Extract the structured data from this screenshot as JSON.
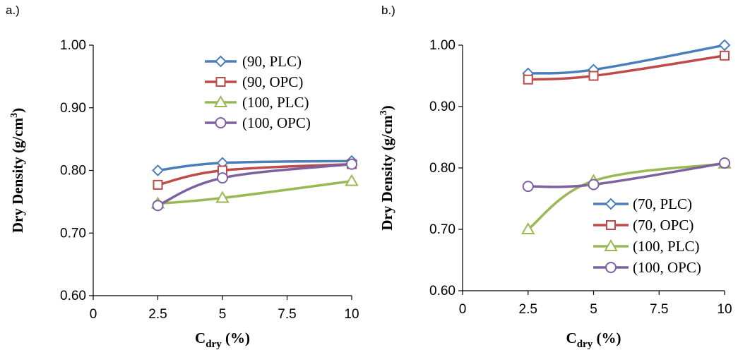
{
  "chart_data": [
    {
      "type": "line",
      "panel_label": "a.)",
      "xlabel": {
        "main": "C",
        "sub": "dry",
        "suffix": " (%)"
      },
      "ylabel": {
        "main": "Dry Density (g/cm",
        "sup": "3",
        "suffix": ")"
      },
      "xlim": [
        0,
        10
      ],
      "ylim": [
        0.6,
        1.0
      ],
      "x_ticks": [
        "0",
        "2.5",
        "5",
        "7.5",
        "10"
      ],
      "y_ticks": [
        "0.60",
        "0.70",
        "0.80",
        "0.90",
        "1.00"
      ],
      "grid": false,
      "legend_position": "top-right",
      "x": [
        2.5,
        5,
        10
      ],
      "series": [
        {
          "name": "(90,  PLC)",
          "color": "#4a7ebb",
          "marker": "diamond",
          "values": [
            0.8,
            0.812,
            0.815
          ]
        },
        {
          "name": "(90,  OPC)",
          "color": "#be4b48",
          "marker": "square",
          "values": [
            0.777,
            0.8,
            0.81
          ]
        },
        {
          "name": "(100,  PLC)",
          "color": "#98b954",
          "marker": "triangle",
          "values": [
            0.747,
            0.756,
            0.783
          ]
        },
        {
          "name": "(100,  OPC)",
          "color": "#7d60a0",
          "marker": "circle",
          "values": [
            0.744,
            0.788,
            0.81
          ]
        }
      ]
    },
    {
      "type": "line",
      "panel_label": "b.)",
      "xlabel": {
        "main": "C",
        "sub": "dry",
        "suffix": " (%)"
      },
      "ylabel": {
        "main": "Dry Density (g/cm",
        "sup": "3",
        "suffix": ")"
      },
      "xlim": [
        0,
        10
      ],
      "ylim": [
        0.6,
        1.0
      ],
      "x_ticks": [
        "0",
        "2.5",
        "5",
        "7.5",
        "10"
      ],
      "y_ticks": [
        "0.60",
        "0.70",
        "0.80",
        "0.90",
        "1.00"
      ],
      "grid": false,
      "legend_position": "bottom-right",
      "x": [
        2.5,
        5,
        10
      ],
      "series": [
        {
          "name": "(70,  PLC)",
          "color": "#4a7ebb",
          "marker": "diamond",
          "values": [
            0.954,
            0.96,
            1.0
          ]
        },
        {
          "name": "(70,  OPC)",
          "color": "#be4b48",
          "marker": "square",
          "values": [
            0.944,
            0.95,
            0.983
          ]
        },
        {
          "name": "(100,  PLC)",
          "color": "#98b954",
          "marker": "triangle",
          "values": [
            0.7,
            0.779,
            0.807
          ]
        },
        {
          "name": "(100,  OPC)",
          "color": "#7d60a0",
          "marker": "circle",
          "values": [
            0.77,
            0.773,
            0.808
          ]
        }
      ]
    }
  ]
}
